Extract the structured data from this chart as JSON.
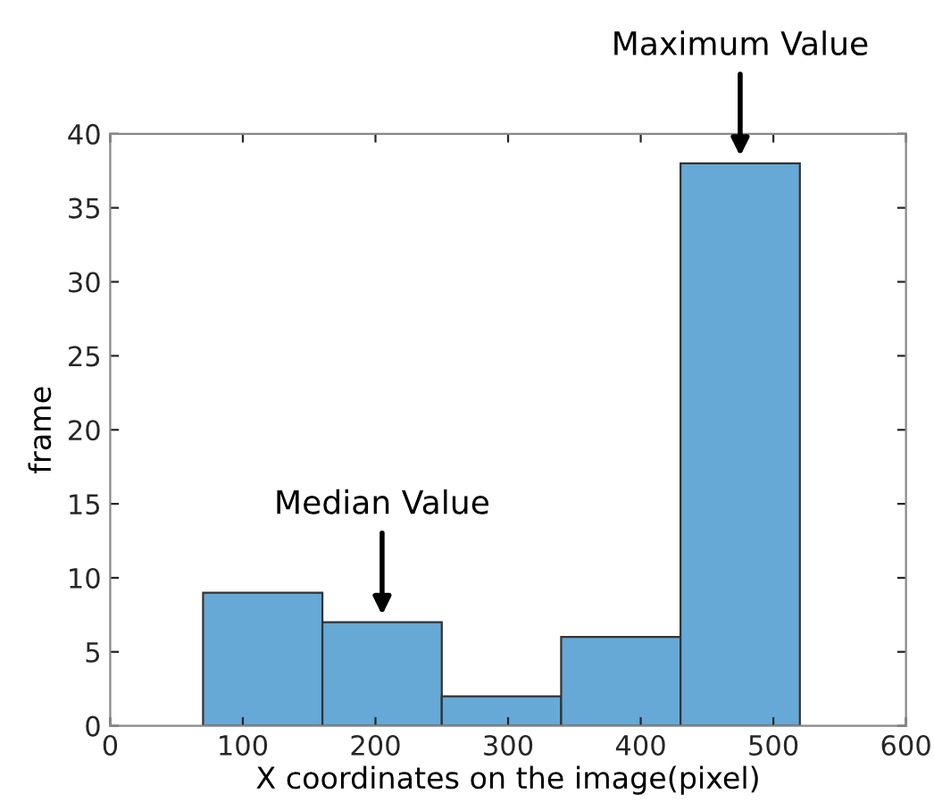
{
  "chart_data": {
    "type": "histogram",
    "xlabel": "X coordinates on the image(pixel)",
    "ylabel": "frame",
    "bins": [
      70,
      160,
      250,
      340,
      430,
      520
    ],
    "values": [
      9,
      7,
      2,
      6,
      38
    ],
    "color": "#66a9d7",
    "xlim": [
      0,
      600
    ],
    "xticks": [
      0,
      100,
      200,
      300,
      400,
      500,
      600
    ],
    "ylim": [
      0,
      40
    ],
    "yticks": [
      0,
      5,
      10,
      15,
      20,
      25,
      30,
      35,
      40
    ],
    "grid": false,
    "annotations": [
      {
        "text": "Median Value",
        "x": 205,
        "y": 7.5
      },
      {
        "text": "Maximum Value",
        "x": 475,
        "y": 38.5
      }
    ]
  }
}
